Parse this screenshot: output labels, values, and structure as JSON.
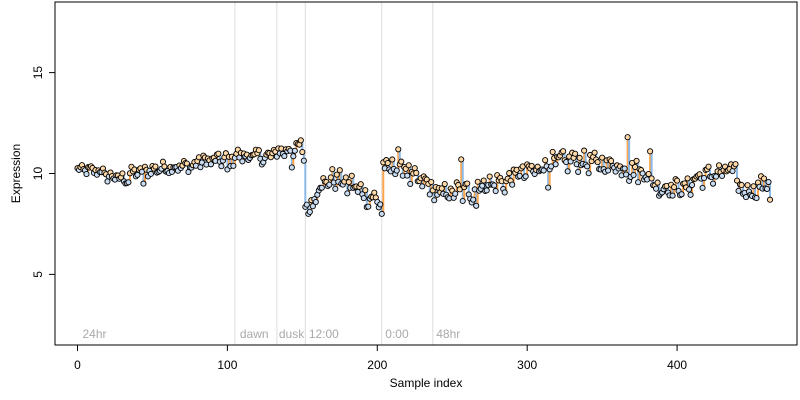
{
  "chart_data": {
    "type": "scatter",
    "xlabel": "Sample index",
    "ylabel": "Expression",
    "xlim": [
      -15,
      480
    ],
    "ylim": [
      1.5,
      18.5
    ],
    "x_ticks": [
      0,
      100,
      200,
      300,
      400
    ],
    "y_ticks": [
      5,
      10,
      15
    ],
    "colors": {
      "above": "#ffa64d",
      "below": "#8cb8e6",
      "neutral": "#999999",
      "vline": "#dddddd",
      "annotation": "#a9a9a9"
    },
    "vlines": [
      105,
      133,
      152,
      203,
      237
    ],
    "annotations": [
      {
        "x": 2,
        "label": "24hr"
      },
      {
        "x": 107,
        "label": "dawn"
      },
      {
        "x": 133,
        "label": "dusk"
      },
      {
        "x": 153,
        "label": "12:00"
      },
      {
        "x": 204,
        "label": "0:00"
      },
      {
        "x": 238,
        "label": "48hr"
      }
    ],
    "segments": [
      {
        "x0": 0,
        "x1": 18,
        "base": 10.2,
        "amp": 0.2,
        "end": 10.1
      },
      {
        "x0": 18,
        "x1": 35,
        "base": 9.9,
        "amp": 0.25,
        "end": 9.7
      },
      {
        "x0": 35,
        "x1": 60,
        "base": 10.0,
        "amp": 0.25,
        "end": 10.3
      },
      {
        "x0": 60,
        "x1": 80,
        "base": 10.3,
        "amp": 0.25,
        "end": 10.4
      },
      {
        "x0": 80,
        "x1": 105,
        "base": 10.6,
        "amp": 0.3,
        "end": 10.7
      },
      {
        "x0": 105,
        "x1": 130,
        "base": 10.9,
        "amp": 0.3,
        "end": 10.8
      },
      {
        "x0": 130,
        "x1": 150,
        "base": 11.0,
        "amp": 0.35,
        "end": 11.3
      },
      {
        "x0": 150,
        "x1": 152,
        "base": 11.0,
        "amp": 0.1,
        "end": 10.7
      },
      {
        "x0": 152,
        "x1": 160,
        "base": 8.5,
        "amp": 0.35,
        "end": 8.8
      },
      {
        "x0": 160,
        "x1": 175,
        "base": 9.4,
        "amp": 0.45,
        "end": 9.8
      },
      {
        "x0": 175,
        "x1": 190,
        "base": 9.6,
        "amp": 0.5,
        "end": 9.2
      },
      {
        "x0": 190,
        "x1": 203,
        "base": 9.0,
        "amp": 0.45,
        "end": 8.6
      },
      {
        "x0": 203,
        "x1": 222,
        "base": 10.3,
        "amp": 0.45,
        "end": 10.2
      },
      {
        "x0": 222,
        "x1": 237,
        "base": 9.8,
        "amp": 0.4,
        "end": 9.4
      },
      {
        "x0": 237,
        "x1": 265,
        "base": 9.0,
        "amp": 0.45,
        "end": 9.1
      },
      {
        "x0": 265,
        "x1": 290,
        "base": 9.4,
        "amp": 0.45,
        "end": 9.6
      },
      {
        "x0": 290,
        "x1": 310,
        "base": 9.9,
        "amp": 0.45,
        "end": 10.2
      },
      {
        "x0": 310,
        "x1": 330,
        "base": 10.5,
        "amp": 0.45,
        "end": 10.6
      },
      {
        "x0": 330,
        "x1": 355,
        "base": 10.7,
        "amp": 0.45,
        "end": 10.4
      },
      {
        "x0": 355,
        "x1": 375,
        "base": 10.5,
        "amp": 0.5,
        "end": 10.1
      },
      {
        "x0": 375,
        "x1": 385,
        "base": 10.2,
        "amp": 0.5,
        "end": 9.7
      },
      {
        "x0": 385,
        "x1": 410,
        "base": 9.3,
        "amp": 0.35,
        "end": 9.3
      },
      {
        "x0": 410,
        "x1": 440,
        "base": 9.7,
        "amp": 0.4,
        "end": 10.2
      },
      {
        "x0": 440,
        "x1": 451,
        "base": 9.3,
        "amp": 0.35,
        "end": 9.1
      },
      {
        "x0": 451,
        "x1": 462,
        "base": 9.2,
        "amp": 0.4,
        "end": 9.6
      }
    ],
    "outliers": [
      {
        "x": 44,
        "y": 9.5
      },
      {
        "x": 100,
        "y": 10.2
      },
      {
        "x": 143,
        "y": 10.3
      },
      {
        "x": 154,
        "y": 8.0
      },
      {
        "x": 155,
        "y": 8.1
      },
      {
        "x": 203,
        "y": 8.0
      },
      {
        "x": 214,
        "y": 11.2
      },
      {
        "x": 256,
        "y": 10.7
      },
      {
        "x": 266,
        "y": 8.4
      },
      {
        "x": 314,
        "y": 9.3
      },
      {
        "x": 367,
        "y": 11.8
      },
      {
        "x": 382,
        "y": 11.1
      },
      {
        "x": 462,
        "y": 8.7
      }
    ],
    "n_points": 463
  }
}
